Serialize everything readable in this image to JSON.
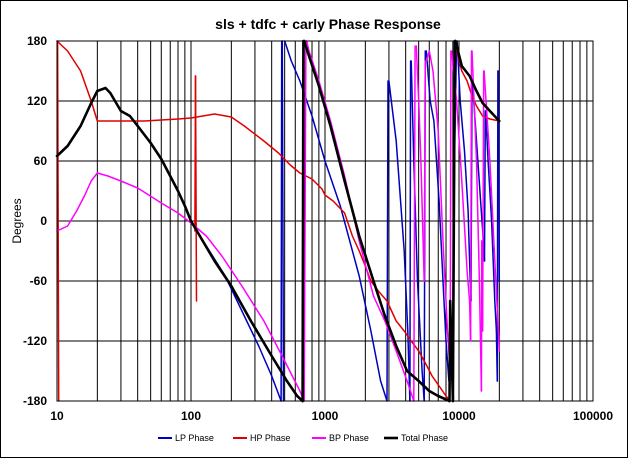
{
  "chart_data": {
    "type": "line",
    "title": "sls + tdfc + carly  Phase Response",
    "xlabel": "",
    "ylabel": "Degrees",
    "x_scale": "log",
    "xlim": [
      10,
      100000
    ],
    "ylim": [
      -180,
      180
    ],
    "x_ticks": [
      "10",
      "100",
      "1000",
      "10000",
      "100000"
    ],
    "y_ticks": [
      "180",
      "120",
      "60",
      "0",
      "-60",
      "-120",
      "-180"
    ],
    "grid": true,
    "legend_position": "bottom",
    "series": [
      {
        "name": "LP Phase",
        "color": "#0000c0",
        "segments": [
          [
            [
              100,
              0
            ],
            [
              130,
              -25
            ],
            [
              180,
              -55
            ],
            [
              250,
              -95
            ],
            [
              320,
              -125
            ],
            [
              400,
              -155
            ],
            [
              470,
              -180
            ]
          ],
          [
            [
              470,
              -180
            ],
            [
              475,
              180
            ]
          ],
          [
            [
              480,
              180
            ],
            [
              490,
              -180
            ]
          ],
          [
            [
              500,
              180
            ],
            [
              560,
              160
            ],
            [
              650,
              140
            ],
            [
              800,
              105
            ],
            [
              1000,
              60
            ],
            [
              1300,
              15
            ],
            [
              1800,
              -55
            ],
            [
              2200,
              -110
            ],
            [
              2600,
              -160
            ],
            [
              2900,
              -180
            ]
          ],
          [
            [
              2900,
              -180
            ],
            [
              2950,
              140
            ]
          ],
          [
            [
              3000,
              140
            ],
            [
              3400,
              80
            ],
            [
              3900,
              -30
            ],
            [
              4150,
              -110
            ],
            [
              4300,
              -180
            ]
          ],
          [
            [
              4300,
              -180
            ],
            [
              4350,
              160
            ]
          ],
          [
            [
              4400,
              160
            ],
            [
              4600,
              60
            ],
            [
              4900,
              -60
            ],
            [
              5300,
              -150
            ],
            [
              5500,
              -180
            ]
          ],
          [
            [
              5500,
              -180
            ],
            [
              5600,
              170
            ]
          ],
          [
            [
              5700,
              170
            ],
            [
              6100,
              120
            ],
            [
              6500,
              100
            ],
            [
              7100,
              20
            ],
            [
              7600,
              -60
            ],
            [
              8000,
              -120
            ],
            [
              8400,
              -160
            ]
          ],
          [
            [
              9000,
              -100
            ],
            [
              9300,
              80
            ],
            [
              9600,
              180
            ]
          ],
          [
            [
              9700,
              180
            ],
            [
              10200,
              120
            ],
            [
              11000,
              70
            ],
            [
              11700,
              10
            ],
            [
              12000,
              -40
            ],
            [
              12300,
              -80
            ]
          ],
          [
            [
              12300,
              -80
            ],
            [
              12500,
              140
            ]
          ],
          [
            [
              12600,
              140
            ],
            [
              13500,
              80
            ],
            [
              14500,
              20
            ],
            [
              15200,
              -20
            ],
            [
              15500,
              -40
            ]
          ],
          [
            [
              15500,
              -40
            ],
            [
              15700,
              110
            ]
          ],
          [
            [
              15800,
              110
            ],
            [
              16500,
              60
            ],
            [
              17500,
              0
            ],
            [
              18500,
              -80
            ],
            [
              19000,
              -110
            ]
          ],
          [
            [
              19000,
              -110
            ],
            [
              19300,
              -160
            ]
          ],
          [
            [
              19300,
              -160
            ],
            [
              19500,
              150
            ]
          ],
          [
            [
              19600,
              150
            ],
            [
              20000,
              -60
            ]
          ]
        ]
      },
      {
        "name": "HP Phase",
        "color": "#e00000",
        "segments": [
          [
            [
              10,
              180
            ],
            [
              12,
              170
            ],
            [
              15,
              150
            ],
            [
              18,
              120
            ],
            [
              20,
              100
            ],
            [
              30,
              100
            ],
            [
              45,
              100
            ],
            [
              60,
              101
            ],
            [
              80,
              102
            ],
            [
              100,
              103
            ],
            [
              150,
              107
            ],
            [
              200,
              104
            ],
            [
              250,
              95
            ],
            [
              350,
              80
            ],
            [
              450,
              68
            ],
            [
              550,
              56
            ],
            [
              650,
              48
            ],
            [
              800,
              42
            ],
            [
              950,
              32
            ],
            [
              1000,
              26
            ],
            [
              1150,
              20
            ],
            [
              1400,
              8
            ],
            [
              1600,
              -15
            ],
            [
              1800,
              -30
            ],
            [
              2000,
              -45
            ],
            [
              2200,
              -60
            ],
            [
              2500,
              -70
            ],
            [
              2900,
              -80
            ],
            [
              3400,
              -100
            ],
            [
              3900,
              -110
            ],
            [
              4400,
              -120
            ],
            [
              5000,
              -130
            ],
            [
              5600,
              -142
            ],
            [
              6300,
              -155
            ],
            [
              7100,
              -165
            ],
            [
              8000,
              -175
            ],
            [
              8600,
              -180
            ]
          ],
          [
            [
              10.1,
              180
            ],
            [
              10.3,
              -180
            ]
          ],
          [
            [
              107,
              -10
            ],
            [
              108,
              145
            ]
          ],
          [
            [
              108,
              145
            ],
            [
              110,
              -80
            ]
          ],
          [
            [
              9400,
              180
            ],
            [
              9800,
              165
            ],
            [
              10500,
              150
            ],
            [
              11500,
              140
            ],
            [
              12500,
              125
            ],
            [
              13500,
              115
            ],
            [
              15000,
              105
            ],
            [
              17000,
              102
            ],
            [
              20000,
              100
            ]
          ]
        ]
      },
      {
        "name": "BP Phase",
        "color": "#ff00ff",
        "segments": [
          [
            [
              10,
              -10
            ],
            [
              12,
              -5
            ],
            [
              14,
              10
            ],
            [
              16,
              25
            ],
            [
              18,
              40
            ],
            [
              20,
              48
            ],
            [
              24,
              45
            ],
            [
              30,
              40
            ],
            [
              40,
              33
            ],
            [
              60,
              18
            ],
            [
              80,
              8
            ],
            [
              100,
              -2
            ],
            [
              130,
              -15
            ],
            [
              170,
              -35
            ],
            [
              240,
              -65
            ],
            [
              350,
              -100
            ],
            [
              500,
              -140
            ],
            [
              650,
              -170
            ],
            [
              700,
              -180
            ]
          ],
          [
            [
              700,
              -180
            ],
            [
              720,
              180
            ]
          ],
          [
            [
              730,
              180
            ],
            [
              760,
              170
            ],
            [
              900,
              140
            ],
            [
              1100,
              100
            ],
            [
              1400,
              45
            ],
            [
              1800,
              -20
            ],
            [
              2300,
              -75
            ],
            [
              2800,
              -100
            ],
            [
              3400,
              -130
            ],
            [
              4100,
              -160
            ],
            [
              4600,
              -180
            ]
          ],
          [
            [
              4600,
              -180
            ],
            [
              4700,
              175
            ]
          ],
          [
            [
              4800,
              175
            ],
            [
              5000,
              120
            ],
            [
              5200,
              60
            ],
            [
              5400,
              -20
            ],
            [
              5500,
              -60
            ]
          ],
          [
            [
              5500,
              -60
            ],
            [
              5600,
              160
            ]
          ],
          [
            [
              5700,
              160
            ],
            [
              6000,
              170
            ],
            [
              6400,
              150
            ],
            [
              7000,
              90
            ],
            [
              7600,
              -20
            ],
            [
              8200,
              -110
            ],
            [
              8600,
              -150
            ]
          ],
          [
            [
              8600,
              -150
            ],
            [
              8700,
              170
            ]
          ],
          [
            [
              8800,
              170
            ],
            [
              9600,
              120
            ],
            [
              10500,
              40
            ],
            [
              11500,
              -50
            ],
            [
              12000,
              -80
            ]
          ],
          [
            [
              12000,
              -80
            ],
            [
              12200,
              -120
            ]
          ],
          [
            [
              12200,
              -120
            ],
            [
              12400,
              170
            ]
          ],
          [
            [
              12500,
              170
            ],
            [
              13500,
              60
            ],
            [
              14200,
              -60
            ],
            [
              14700,
              -170
            ]
          ],
          [
            [
              14700,
              -170
            ],
            [
              14800,
              -20
            ]
          ],
          [
            [
              14800,
              -20
            ],
            [
              15000,
              -110
            ]
          ],
          [
            [
              15000,
              -110
            ],
            [
              15300,
              150
            ]
          ],
          [
            [
              15400,
              150
            ],
            [
              17000,
              60
            ],
            [
              18500,
              -40
            ],
            [
              19500,
              -100
            ],
            [
              20000,
              -130
            ]
          ]
        ]
      },
      {
        "name": "Total Phase",
        "color": "#000000",
        "segments": [
          [
            [
              10,
              65
            ],
            [
              12,
              75
            ],
            [
              15,
              95
            ],
            [
              18,
              118
            ],
            [
              20,
              130
            ],
            [
              23,
              133
            ],
            [
              25,
              128
            ],
            [
              30,
              110
            ],
            [
              35,
              105
            ],
            [
              40,
              95
            ],
            [
              50,
              78
            ],
            [
              60,
              62
            ],
            [
              70,
              45
            ],
            [
              80,
              30
            ],
            [
              90,
              15
            ],
            [
              100,
              0
            ],
            [
              120,
              -18
            ],
            [
              150,
              -40
            ],
            [
              200,
              -65
            ],
            [
              280,
              -100
            ],
            [
              400,
              -135
            ],
            [
              520,
              -160
            ],
            [
              620,
              -175
            ],
            [
              680,
              -180
            ]
          ],
          [
            [
              680,
              -180
            ],
            [
              690,
              180
            ]
          ],
          [
            [
              700,
              180
            ],
            [
              760,
              165
            ],
            [
              900,
              135
            ],
            [
              1100,
              95
            ],
            [
              1400,
              40
            ],
            [
              1800,
              -15
            ],
            [
              2300,
              -60
            ],
            [
              2800,
              -95
            ],
            [
              3400,
              -125
            ],
            [
              4100,
              -150
            ],
            [
              5000,
              -160
            ],
            [
              6000,
              -170
            ],
            [
              7000,
              -175
            ],
            [
              8500,
              -180
            ]
          ],
          [
            [
              8500,
              -180
            ],
            [
              8600,
              -80
            ]
          ],
          [
            [
              8600,
              -80
            ],
            [
              9000,
              -180
            ]
          ],
          [
            [
              9000,
              -180
            ],
            [
              9300,
              180
            ]
          ],
          [
            [
              9400,
              180
            ],
            [
              10500,
              155
            ],
            [
              12000,
              145
            ],
            [
              13500,
              130
            ],
            [
              15000,
              118
            ],
            [
              17000,
              110
            ],
            [
              20000,
              100
            ]
          ]
        ]
      }
    ]
  }
}
